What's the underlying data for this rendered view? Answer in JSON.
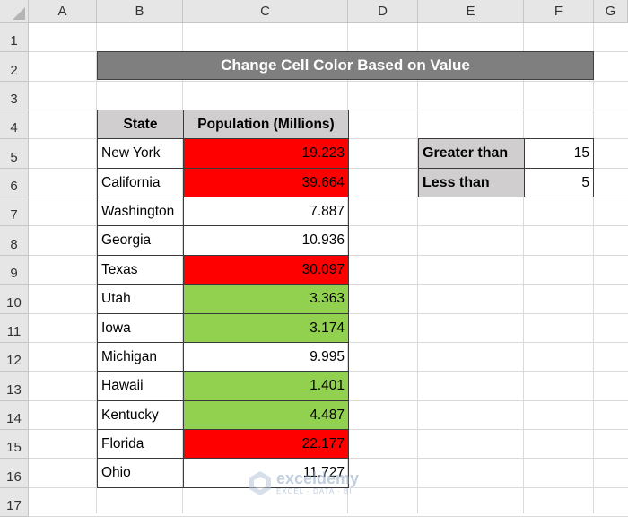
{
  "columns": [
    "A",
    "B",
    "C",
    "D",
    "E",
    "F",
    "G"
  ],
  "rows": [
    "1",
    "2",
    "3",
    "4",
    "5",
    "6",
    "7",
    "8",
    "9",
    "10",
    "11",
    "12",
    "13",
    "14",
    "15",
    "16",
    "17"
  ],
  "title": "Change Cell Color Based on Value",
  "table": {
    "headers": [
      "State",
      "Population (Millions)"
    ],
    "rows": [
      {
        "state": "New York",
        "population": "19.223",
        "fill": "red"
      },
      {
        "state": "California",
        "population": "39.664",
        "fill": "red"
      },
      {
        "state": "Washington",
        "population": "7.887",
        "fill": "none"
      },
      {
        "state": "Georgia",
        "population": "10.936",
        "fill": "none"
      },
      {
        "state": "Texas",
        "population": "30.097",
        "fill": "red"
      },
      {
        "state": "Utah",
        "population": "3.363",
        "fill": "green"
      },
      {
        "state": "Iowa",
        "population": "3.174",
        "fill": "green"
      },
      {
        "state": "Michigan",
        "population": "9.995",
        "fill": "none"
      },
      {
        "state": "Hawaii",
        "population": "1.401",
        "fill": "green"
      },
      {
        "state": "Kentucky",
        "population": "4.487",
        "fill": "green"
      },
      {
        "state": "Florida",
        "population": "22.177",
        "fill": "red"
      },
      {
        "state": "Ohio",
        "population": "11.727",
        "fill": "none"
      }
    ]
  },
  "criteria": [
    {
      "label": "Greater than",
      "value": "15"
    },
    {
      "label": "Less than",
      "value": "5"
    }
  ],
  "watermark": {
    "name": "exceldemy",
    "sub": "EXCEL · DATA · BI",
    "icon": "exceldemy-logo-icon"
  },
  "colors": {
    "red_fill": "#ff0000",
    "green_fill": "#92d050",
    "header_fill": "#d0cece",
    "title_fill": "#7f7f7f"
  }
}
